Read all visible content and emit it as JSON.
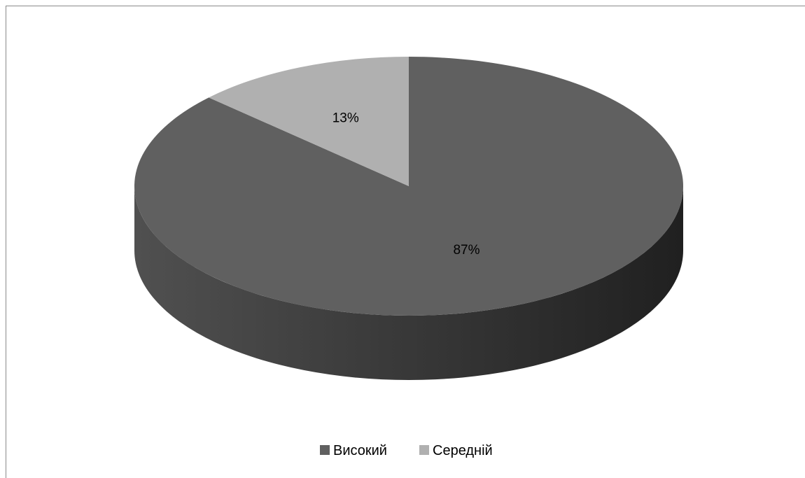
{
  "chart_data": {
    "type": "pie",
    "style": "3d",
    "title": "",
    "categories": [
      "Високий",
      "Середній"
    ],
    "values": [
      87,
      13
    ],
    "data_labels": [
      "87%",
      "13%"
    ],
    "colors": {
      "Високий": {
        "top": "#606060",
        "side_light": "#505050",
        "side_dark": "#202020"
      },
      "Середній": {
        "top": "#b0b0b0",
        "side_light": "#9a9a9a",
        "side_dark": "#8c8c8c"
      }
    },
    "legend": {
      "placement": "bottom",
      "entries": [
        "Високий",
        "Середній"
      ]
    }
  }
}
